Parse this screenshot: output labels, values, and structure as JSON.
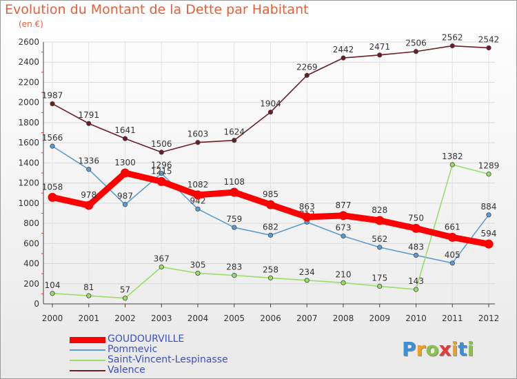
{
  "title": "Evolution du Montant de la Dette par Habitant",
  "subtitle": "(en €)",
  "chart_data": {
    "type": "line",
    "title": "Evolution du Montant de la Dette par Habitant",
    "ylabel": "(en €)",
    "x": [
      "2000",
      "2001",
      "2002",
      "2003",
      "2004",
      "2005",
      "2006",
      "2007",
      "2008",
      "2009",
      "2010",
      "2011",
      "2012"
    ],
    "ylim": [
      0,
      2600
    ],
    "yticks": [
      0,
      200,
      400,
      600,
      800,
      1000,
      1200,
      1400,
      1600,
      1800,
      2000,
      2200,
      2400,
      2600
    ],
    "grid": true,
    "legend_position": "bottom-left",
    "series": [
      {
        "name": "Valence",
        "color": "#6b1d22",
        "values": [
          1987,
          1791,
          1641,
          1506,
          1603,
          1624,
          1904,
          2269,
          2442,
          2471,
          2506,
          2562,
          2542
        ]
      },
      {
        "name": "Pommevic",
        "color": "#5c9bd1",
        "values": [
          1566,
          1336,
          987,
          1296,
          942,
          759,
          682,
          812,
          673,
          562,
          483,
          405,
          884
        ]
      },
      {
        "name": "Saint-Vincent-Lespinasse",
        "color": "#99dd66",
        "values": [
          104,
          81,
          57,
          367,
          305,
          283,
          258,
          234,
          210,
          175,
          143,
          1382,
          1289
        ]
      },
      {
        "name": "GOUDOURVILLE",
        "color": "#ff0000",
        "values": [
          1058,
          978,
          1300,
          1215,
          1082,
          1108,
          985,
          863,
          877,
          828,
          750,
          661,
          594
        ]
      }
    ]
  },
  "legend": [
    {
      "name": "GOUDOURVILLE",
      "color": "#ff0000"
    },
    {
      "name": "Pommevic",
      "color": "#5c9bd1"
    },
    {
      "name": "Saint-Vincent-Lespinasse",
      "color": "#99dd66"
    },
    {
      "name": "Valence",
      "color": "#6b1d22"
    }
  ],
  "logo": {
    "letters": [
      "P",
      "r",
      "o",
      "x",
      "i",
      "t",
      "i"
    ],
    "colors": [
      "#3a8fd8",
      "#f0a020",
      "#8bc34a",
      "#e53935",
      "#f0a020",
      "#3a8fd8",
      "#8bc34a"
    ]
  }
}
